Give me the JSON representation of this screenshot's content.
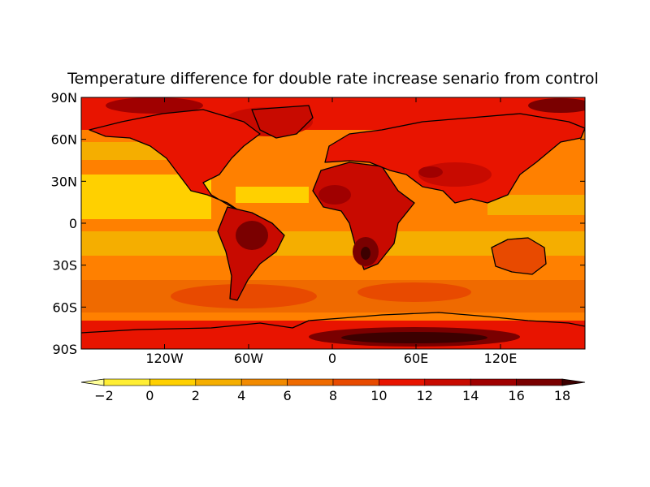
{
  "title": "Temperature difference for double rate increase senario from control",
  "y_ticks": [
    "90N",
    "60N",
    "30N",
    "0",
    "30S",
    "60S",
    "90S"
  ],
  "x_ticks": [
    "120W",
    "60W",
    "0",
    "60E",
    "120E"
  ],
  "colorbar": {
    "ticks": [
      "−2",
      "0",
      "2",
      "4",
      "6",
      "8",
      "10",
      "12",
      "14",
      "16",
      "18"
    ],
    "colors": [
      "#ffff99",
      "#ffee33",
      "#ffd000",
      "#f5ae00",
      "#f28a00",
      "#ef6a00",
      "#e84a00",
      "#e81400",
      "#c80a00",
      "#a00000",
      "#7a0000",
      "#3c0000"
    ],
    "extend": "both"
  },
  "map": {
    "ocean_base": "#ff8000",
    "coastline": "#000000",
    "projection": "plate carree"
  }
}
